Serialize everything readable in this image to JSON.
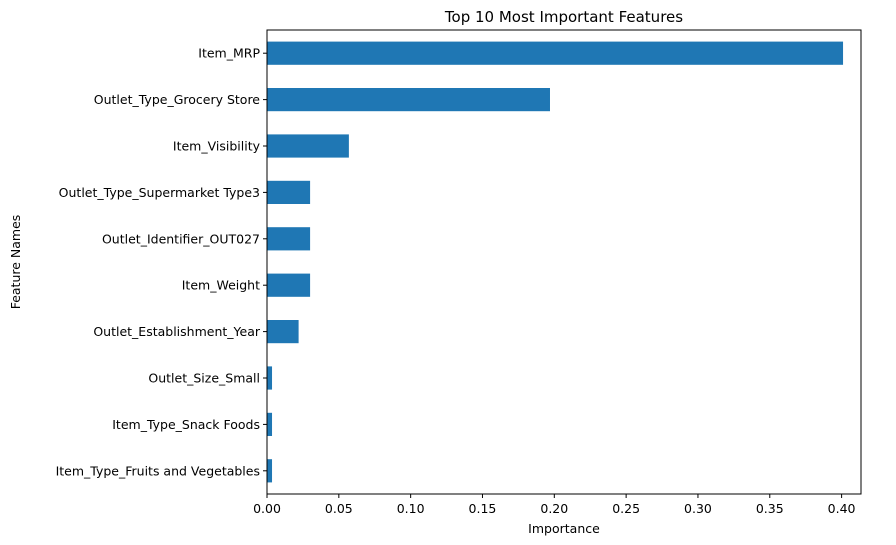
{
  "chart_data": {
    "type": "bar",
    "orientation": "horizontal",
    "title": "Top 10 Most Important Features",
    "xlabel": "Importance",
    "ylabel": "Feature Names",
    "xlim": [
      0.0,
      0.4135
    ],
    "xticks": [
      0.0,
      0.05,
      0.1,
      0.15,
      0.2,
      0.25,
      0.3,
      0.35,
      0.4
    ],
    "xtick_labels": [
      "0.00",
      "0.05",
      "0.10",
      "0.15",
      "0.20",
      "0.25",
      "0.30",
      "0.35",
      "0.40"
    ],
    "grid": false,
    "bar_color": "#1f77b4",
    "categories": [
      "Item_MRP",
      "Outlet_Type_Grocery Store",
      "Item_Visibility",
      "Outlet_Type_Supermarket Type3",
      "Outlet_Identifier_OUT027",
      "Item_Weight",
      "Outlet_Establishment_Year",
      "Outlet_Size_Small",
      "Item_Type_Snack Foods",
      "Item_Type_Fruits and Vegetables"
    ],
    "values": [
      0.401,
      0.197,
      0.057,
      0.03,
      0.03,
      0.03,
      0.022,
      0.0035,
      0.0035,
      0.0035
    ]
  }
}
